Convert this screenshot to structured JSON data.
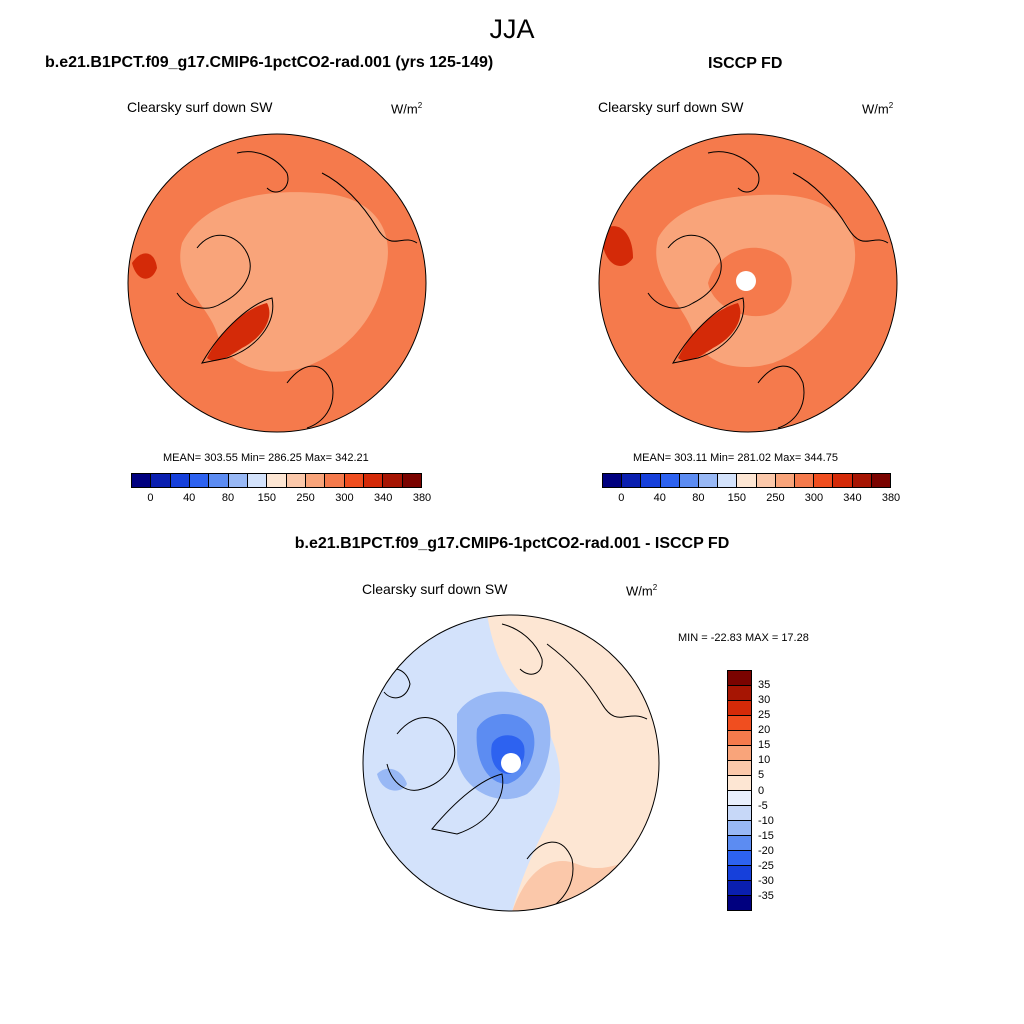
{
  "season": "JJA",
  "panels": [
    {
      "title": "b.e21.B1PCT.f09_g17.CMIP6-1pctCO2-rad.001 (yrs 125-149)",
      "field": "Clearsky surf down SW",
      "units": "W/m",
      "units_exp": "2",
      "stats": "MEAN= 303.55  Min= 286.25  Max= 342.21",
      "mean": 303.55,
      "min": 286.25,
      "max": 342.21
    },
    {
      "title": "ISCCP FD",
      "field": "Clearsky surf down SW",
      "units": "W/m",
      "units_exp": "2",
      "stats": "MEAN= 303.11  Min= 281.02  Max= 344.75",
      "mean": 303.11,
      "min": 281.02,
      "max": 344.75
    }
  ],
  "diff": {
    "title": "b.e21.B1PCT.f09_g17.CMIP6-1pctCO2-rad.001 - ISCCP FD",
    "field": "Clearsky surf down SW",
    "units": "W/m",
    "units_exp": "2",
    "stats": "MIN = -22.83 MAX =  17.28",
    "min": -22.83,
    "max": 17.28
  },
  "colorbar": {
    "ticks": [
      "0",
      "40",
      "80",
      "150",
      "250",
      "300",
      "340",
      "380"
    ],
    "colors": [
      "#00007f",
      "#0a1fb0",
      "#1640db",
      "#2d62f0",
      "#5c8cf2",
      "#98b8f5",
      "#d3e2fb",
      "#fde6d3",
      "#fbc8aa",
      "#f9a47a",
      "#f57a4c",
      "#f04e1f",
      "#d42a08",
      "#a61503",
      "#7a0300"
    ]
  },
  "diff_colorbar": {
    "ticks": [
      "35",
      "30",
      "25",
      "20",
      "15",
      "10",
      "5",
      "0",
      "-5",
      "-10",
      "-15",
      "-20",
      "-25",
      "-30",
      "-35"
    ],
    "colors": [
      "#7a0300",
      "#a61503",
      "#d42a08",
      "#f04e1f",
      "#f57a4c",
      "#f9a47a",
      "#fbc8aa",
      "#fde6d3",
      "#e8effc",
      "#c7d8f8",
      "#98b8f5",
      "#5c8cf2",
      "#2d62f0",
      "#1640db",
      "#0a1fb0",
      "#00007f"
    ]
  },
  "map_colors": {
    "base": "#f57a4c",
    "light": "#f9a47a",
    "dark": "#d42a08",
    "diff_pos": "#fde6d3",
    "diff_pos2": "#fbc8aa",
    "diff_neg": "#d3e2fb",
    "diff_neg2": "#98b8f5",
    "diff_neg3": "#5c8cf2",
    "diff_neg4": "#2d62f0",
    "pole": "#ffffff"
  }
}
